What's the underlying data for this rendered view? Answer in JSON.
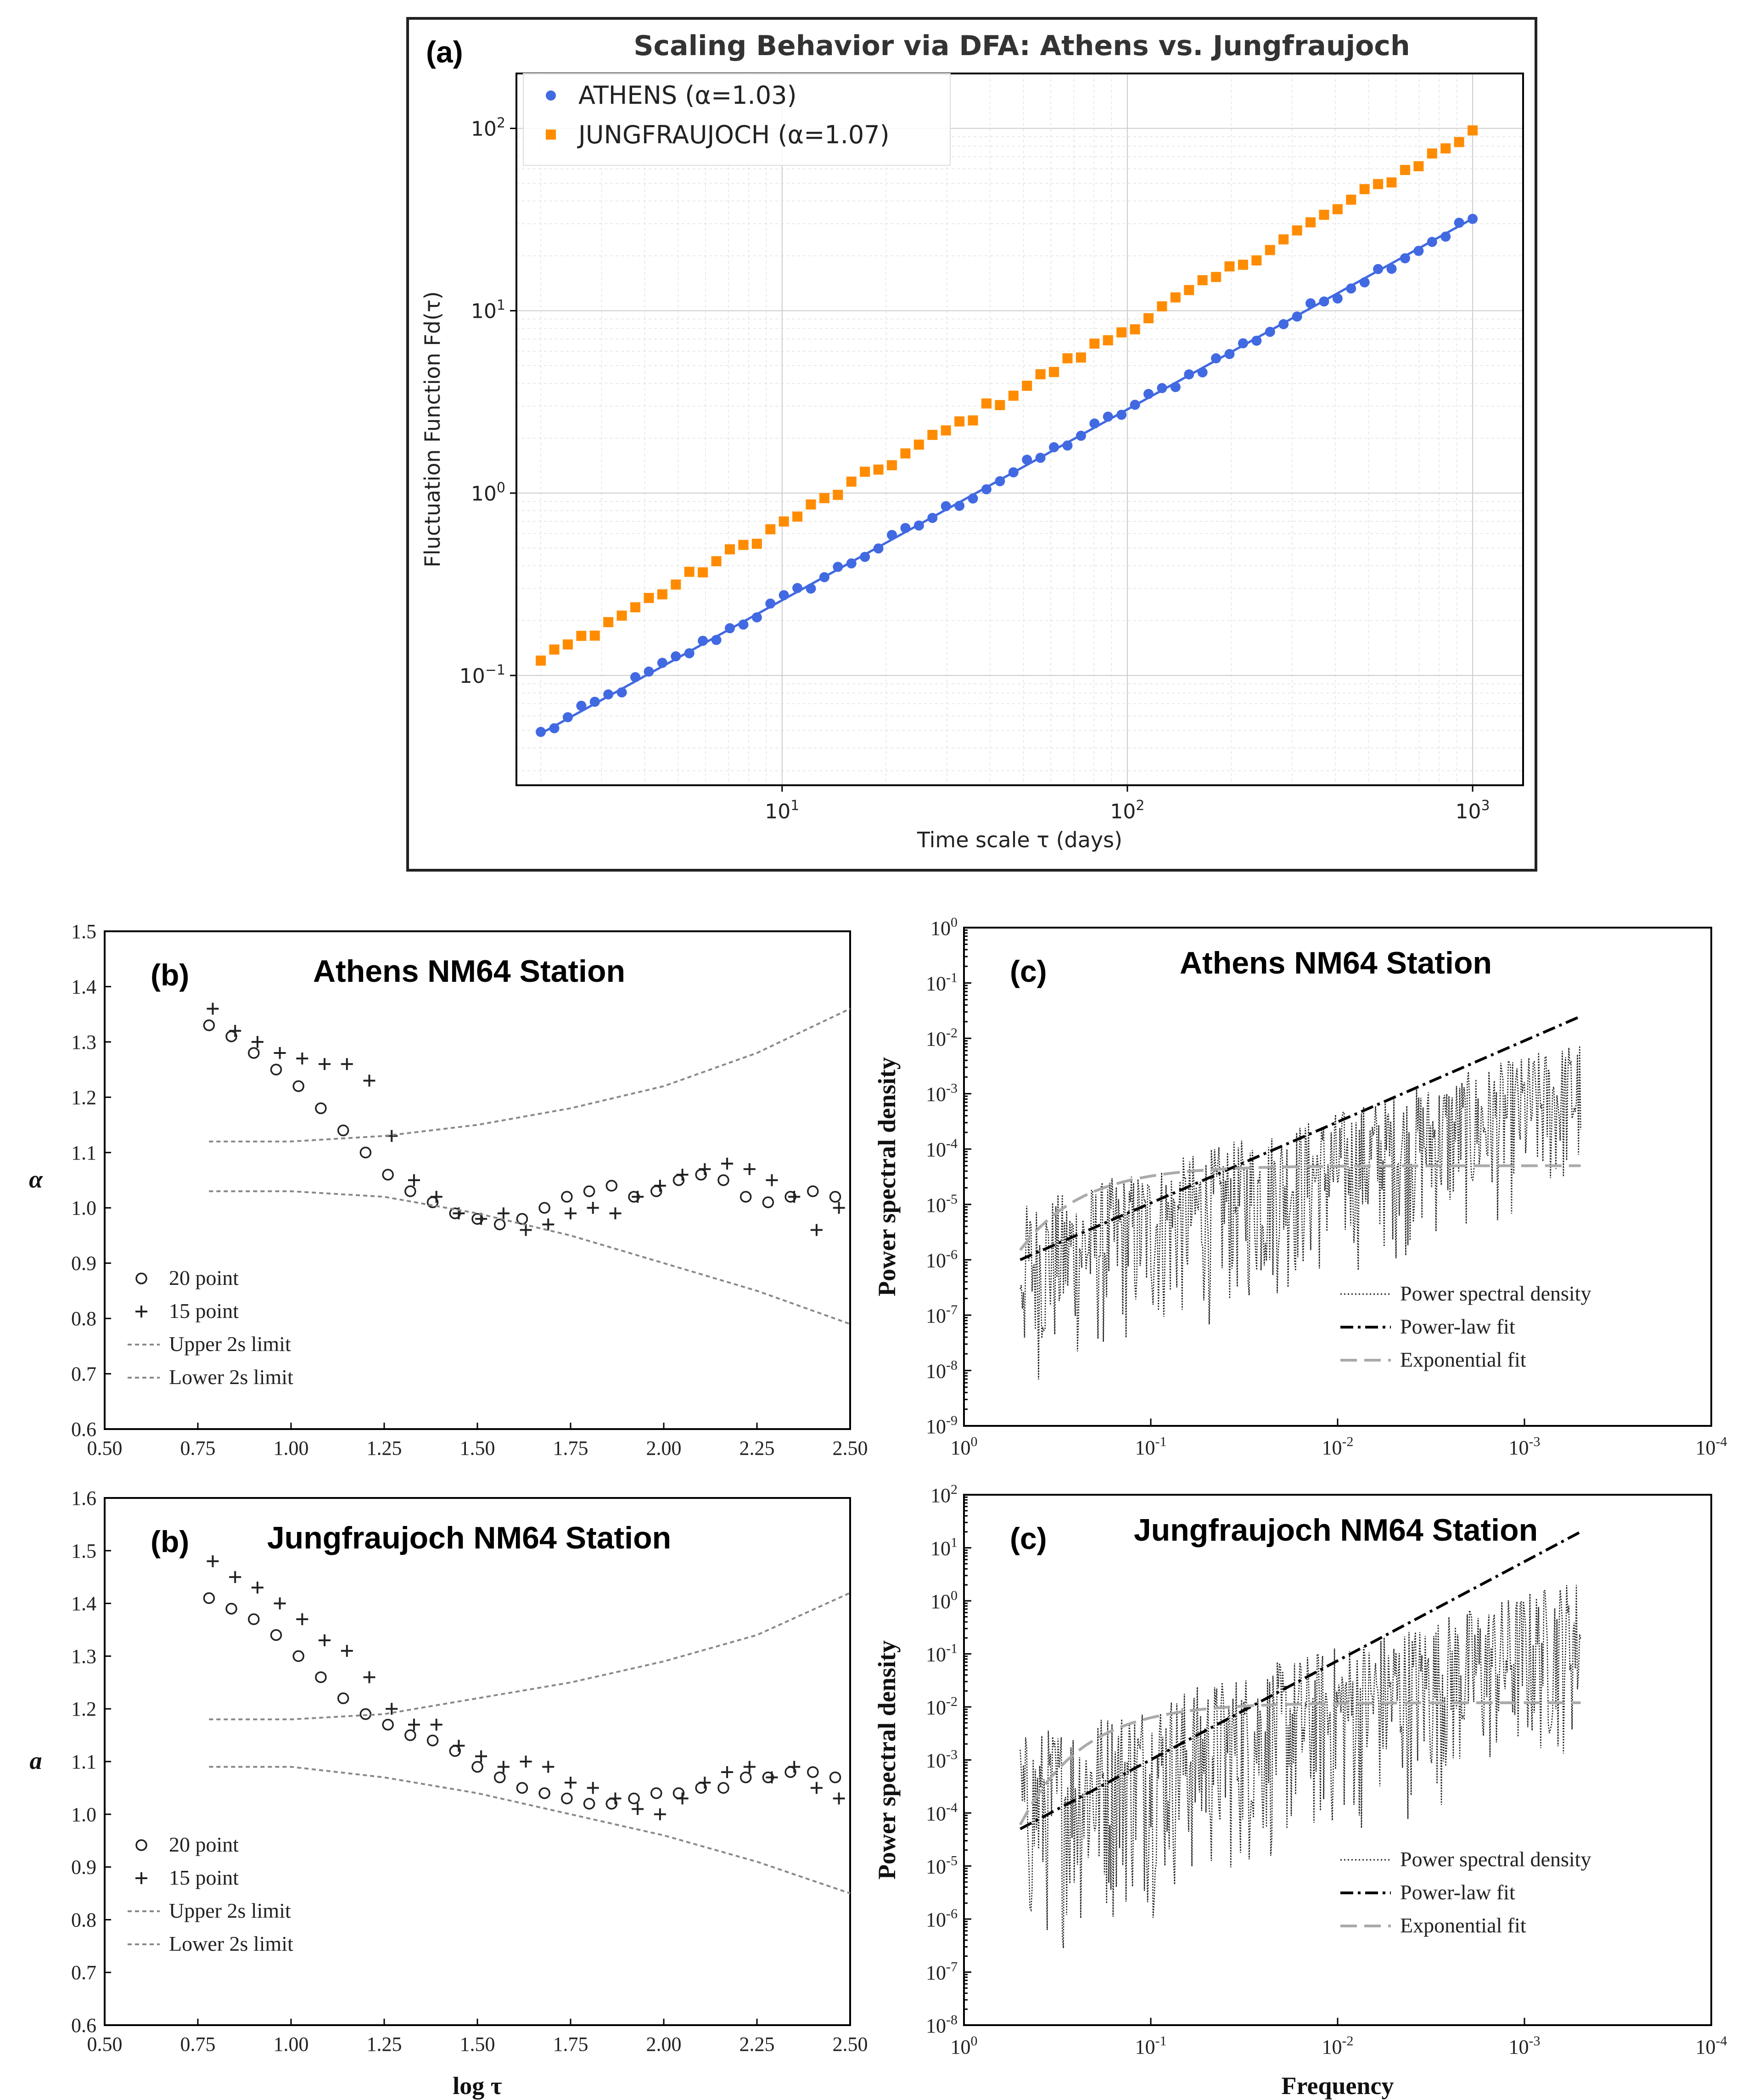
{
  "chart_data": [
    {
      "panel": "a",
      "type": "scatter",
      "title": "Scaling Behavior via DFA: Athens vs. Jungfraujoch",
      "xlabel": "Time scale τ (days)",
      "ylabel": "Fluctuation Function Fd(τ)",
      "xscale": "log",
      "yscale": "log",
      "xlim": [
        1.7,
        1400
      ],
      "ylim": [
        0.025,
        200
      ],
      "xticks": [
        {
          "v": 10,
          "b": "10",
          "e": "1"
        },
        {
          "v": 100,
          "b": "10",
          "e": "2"
        },
        {
          "v": 1000,
          "b": "10",
          "e": "3"
        }
      ],
      "yticks": [
        {
          "v": 0.1,
          "b": "10",
          "e": "−1"
        },
        {
          "v": 1,
          "b": "10",
          "e": "0"
        },
        {
          "v": 10,
          "b": "10",
          "e": "1"
        },
        {
          "v": 100,
          "b": "10",
          "e": "2"
        }
      ],
      "legend_position": "top-left",
      "series": [
        {
          "name": "ATHENS (α=1.03)",
          "marker": "circle",
          "color": "#4169e1",
          "x_range": [
            2,
            1000
          ],
          "start": 0.048,
          "end": 32,
          "n": 70,
          "fit": true
        },
        {
          "name": "JUNGFRAUJOCH (α=1.07)",
          "marker": "square",
          "color": "#ff8c00",
          "x_range": [
            2,
            1000
          ],
          "start": 0.12,
          "end": 95,
          "n": 70,
          "fit": false
        }
      ]
    },
    {
      "panel": "b",
      "type": "scatter",
      "title": "Athens NM64 Station",
      "panel_label": "(b)",
      "xlabel": "",
      "ylabel": "α",
      "xlim": [
        0.5,
        2.5
      ],
      "ylim": [
        0.6,
        1.5
      ],
      "xticks": [
        "0.50",
        "0.75",
        "1.00",
        "1.25",
        "1.50",
        "1.75",
        "2.00",
        "2.25",
        "2.50"
      ],
      "yticks": [
        "0.6",
        "0.7",
        "0.8",
        "0.9",
        "1.0",
        "1.1",
        "1.2",
        "1.3",
        "1.4",
        "1.5"
      ],
      "series": [
        {
          "name": "20 point",
          "marker": "open-circle",
          "x": [
            0.78,
            0.84,
            0.9,
            0.96,
            1.02,
            1.08,
            1.14,
            1.2,
            1.26,
            1.32,
            1.38,
            1.44,
            1.5,
            1.56,
            1.62,
            1.68,
            1.74,
            1.8,
            1.86,
            1.92,
            1.98,
            2.04,
            2.1,
            2.16,
            2.22,
            2.28,
            2.34,
            2.4,
            2.46
          ],
          "y": [
            1.33,
            1.31,
            1.28,
            1.25,
            1.22,
            1.18,
            1.14,
            1.1,
            1.06,
            1.03,
            1.01,
            0.99,
            0.98,
            0.97,
            0.98,
            1.0,
            1.02,
            1.03,
            1.04,
            1.02,
            1.03,
            1.05,
            1.06,
            1.05,
            1.02,
            1.01,
            1.02,
            1.03,
            1.02
          ]
        },
        {
          "name": "15 point",
          "marker": "plus",
          "x": [
            0.79,
            0.85,
            0.91,
            0.97,
            1.03,
            1.09,
            1.15,
            1.21,
            1.27,
            1.33,
            1.39,
            1.45,
            1.51,
            1.57,
            1.63,
            1.69,
            1.75,
            1.81,
            1.87,
            1.93,
            1.99,
            2.05,
            2.11,
            2.17,
            2.23,
            2.29,
            2.35,
            2.41,
            2.47
          ],
          "y": [
            1.36,
            1.32,
            1.3,
            1.28,
            1.27,
            1.26,
            1.26,
            1.23,
            1.13,
            1.05,
            1.02,
            0.99,
            0.98,
            0.99,
            0.96,
            0.97,
            0.99,
            1.0,
            0.99,
            1.02,
            1.04,
            1.06,
            1.07,
            1.08,
            1.07,
            1.05,
            1.02,
            0.96,
            1.0
          ]
        },
        {
          "name": "Upper 2s limit",
          "line": "dotted",
          "x": [
            0.78,
            1.0,
            1.25,
            1.5,
            1.75,
            2.0,
            2.25,
            2.5
          ],
          "y": [
            1.12,
            1.12,
            1.13,
            1.15,
            1.18,
            1.22,
            1.28,
            1.36
          ]
        },
        {
          "name": "Lower 2s limit",
          "line": "dotted",
          "x": [
            0.78,
            1.0,
            1.25,
            1.5,
            1.75,
            2.0,
            2.25,
            2.5
          ],
          "y": [
            1.03,
            1.03,
            1.02,
            0.99,
            0.95,
            0.9,
            0.85,
            0.79
          ]
        }
      ]
    },
    {
      "panel": "c",
      "type": "line",
      "title": "Athens NM64 Station",
      "panel_label": "(c)",
      "xlabel": "",
      "ylabel": "Power spectral density",
      "xscale": "log-reversed",
      "yscale": "log",
      "xlim": [
        1,
        0.0001
      ],
      "ylim": [
        1e-09,
        1
      ],
      "xticks": [
        {
          "b": "10",
          "e": "0"
        },
        {
          "b": "10",
          "e": "-1"
        },
        {
          "b": "10",
          "e": "-2"
        },
        {
          "b": "10",
          "e": "-3"
        },
        {
          "b": "10",
          "e": "-4"
        }
      ],
      "yticks": [
        {
          "b": "10",
          "e": "-9"
        },
        {
          "b": "10",
          "e": "-8"
        },
        {
          "b": "10",
          "e": "-7"
        },
        {
          "b": "10",
          "e": "-6"
        },
        {
          "b": "10",
          "e": "-5"
        },
        {
          "b": "10",
          "e": "-4"
        },
        {
          "b": "10",
          "e": "-3"
        },
        {
          "b": "10",
          "e": "-2"
        },
        {
          "b": "10",
          "e": "-1"
        },
        {
          "b": "10",
          "e": "0"
        }
      ],
      "power_law_fit": {
        "from": 0.5,
        "to": 0.0005,
        "y_from": 1e-06,
        "y_to": 0.025
      },
      "exponential_fit": {
        "from": 0.5,
        "to": 0.0005,
        "y_start": 1.5e-06,
        "plateau": 5e-05
      },
      "psd_envelope": {
        "from": 0.5,
        "to": 0.0005,
        "top_start": 1e-05,
        "top_end": 0.01,
        "bottom_start": 3e-09,
        "bottom_end": 1e-05
      },
      "legend": [
        "Power spectral density",
        "Power-law fit",
        "Exponential fit"
      ]
    },
    {
      "panel": "b",
      "type": "scatter",
      "title": "Jungfraujoch NM64 Station",
      "panel_label": "(b)",
      "xlabel": "log τ",
      "ylabel": "a",
      "xlim": [
        0.5,
        2.5
      ],
      "ylim": [
        0.6,
        1.6
      ],
      "xticks": [
        "0.50",
        "0.75",
        "1.00",
        "1.25",
        "1.50",
        "1.75",
        "2.00",
        "2.25",
        "2.50"
      ],
      "yticks": [
        "0.6",
        "0.7",
        "0.8",
        "0.9",
        "1.0",
        "1.1",
        "1.2",
        "1.3",
        "1.4",
        "1.5",
        "1.6"
      ],
      "series": [
        {
          "name": "20 point",
          "marker": "open-circle",
          "x": [
            0.78,
            0.84,
            0.9,
            0.96,
            1.02,
            1.08,
            1.14,
            1.2,
            1.26,
            1.32,
            1.38,
            1.44,
            1.5,
            1.56,
            1.62,
            1.68,
            1.74,
            1.8,
            1.86,
            1.92,
            1.98,
            2.04,
            2.1,
            2.16,
            2.22,
            2.28,
            2.34,
            2.4,
            2.46
          ],
          "y": [
            1.41,
            1.39,
            1.37,
            1.34,
            1.3,
            1.26,
            1.22,
            1.19,
            1.17,
            1.15,
            1.14,
            1.12,
            1.09,
            1.07,
            1.05,
            1.04,
            1.03,
            1.02,
            1.02,
            1.03,
            1.04,
            1.04,
            1.05,
            1.05,
            1.07,
            1.07,
            1.08,
            1.08,
            1.07
          ]
        },
        {
          "name": "15 point",
          "marker": "plus",
          "x": [
            0.79,
            0.85,
            0.91,
            0.97,
            1.03,
            1.09,
            1.15,
            1.21,
            1.27,
            1.33,
            1.39,
            1.45,
            1.51,
            1.57,
            1.63,
            1.69,
            1.75,
            1.81,
            1.87,
            1.93,
            1.99,
            2.05,
            2.11,
            2.17,
            2.23,
            2.29,
            2.35,
            2.41,
            2.47
          ],
          "y": [
            1.48,
            1.45,
            1.43,
            1.4,
            1.37,
            1.33,
            1.31,
            1.26,
            1.2,
            1.17,
            1.17,
            1.13,
            1.11,
            1.09,
            1.1,
            1.09,
            1.06,
            1.05,
            1.03,
            1.01,
            1.0,
            1.03,
            1.06,
            1.08,
            1.09,
            1.07,
            1.09,
            1.05,
            1.03
          ]
        },
        {
          "name": "Upper 2s limit",
          "line": "dotted",
          "x": [
            0.78,
            1.0,
            1.25,
            1.5,
            1.75,
            2.0,
            2.25,
            2.5
          ],
          "y": [
            1.18,
            1.18,
            1.19,
            1.22,
            1.25,
            1.29,
            1.34,
            1.42
          ]
        },
        {
          "name": "Lower 2s limit",
          "line": "dotted",
          "x": [
            0.78,
            1.0,
            1.25,
            1.5,
            1.75,
            2.0,
            2.25,
            2.5
          ],
          "y": [
            1.09,
            1.09,
            1.07,
            1.04,
            1.0,
            0.96,
            0.91,
            0.85
          ]
        }
      ]
    },
    {
      "panel": "c",
      "type": "line",
      "title": "Jungfraujoch NM64 Station",
      "panel_label": "(c)",
      "xlabel": "Frequency",
      "ylabel": "Power spectral density",
      "xscale": "log-reversed",
      "yscale": "log",
      "xlim": [
        1,
        0.0001
      ],
      "ylim": [
        1e-08,
        100
      ],
      "xticks": [
        {
          "b": "10",
          "e": "0"
        },
        {
          "b": "10",
          "e": "-1"
        },
        {
          "b": "10",
          "e": "-2"
        },
        {
          "b": "10",
          "e": "-3"
        },
        {
          "b": "10",
          "e": "-4"
        }
      ],
      "yticks": [
        {
          "b": "10",
          "e": "-8"
        },
        {
          "b": "10",
          "e": "-7"
        },
        {
          "b": "10",
          "e": "-6"
        },
        {
          "b": "10",
          "e": "-5"
        },
        {
          "b": "10",
          "e": "-4"
        },
        {
          "b": "10",
          "e": "-3"
        },
        {
          "b": "10",
          "e": "-2"
        },
        {
          "b": "10",
          "e": "-1"
        },
        {
          "b": "10",
          "e": "0"
        },
        {
          "b": "10",
          "e": "1"
        },
        {
          "b": "10",
          "e": "2"
        }
      ],
      "power_law_fit": {
        "from": 0.5,
        "to": 0.0005,
        "y_from": 5e-05,
        "y_to": 20
      },
      "exponential_fit": {
        "from": 0.5,
        "to": 0.0005,
        "y_start": 6e-05,
        "plateau": 0.012
      },
      "psd_envelope": {
        "from": 0.5,
        "to": 0.0005,
        "top_start": 0.003,
        "top_end": 3,
        "bottom_start": 1e-07,
        "bottom_end": 0.001
      },
      "legend": [
        "Power spectral density",
        "Power-law fit",
        "Exponential fit"
      ]
    }
  ],
  "panel_a_label": "(a)"
}
